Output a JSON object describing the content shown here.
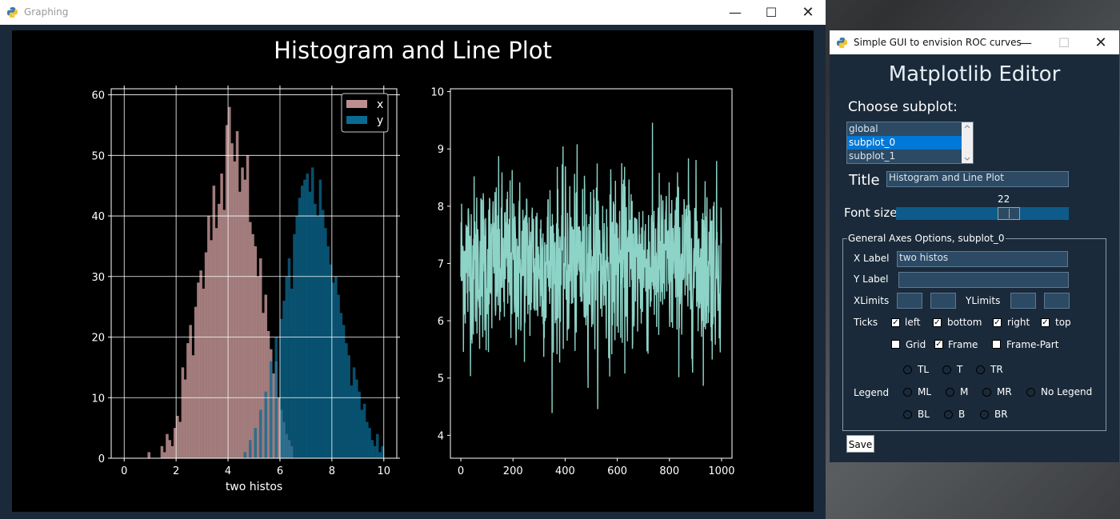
{
  "win1": {
    "title": "Graphing",
    "suptitle": "Histogram and Line Plot"
  },
  "win2": {
    "title": "Simple GUI to envision ROC curves",
    "heading": "Matplotlib Editor",
    "choose_subplot_label": "Choose subplot:",
    "subplots": [
      "global",
      "subplot_0",
      "subplot_1"
    ],
    "selected_subplot": "subplot_0",
    "title_label": "Title",
    "title_value": "Histogram and Line Plot",
    "font_size_label": "Font size",
    "font_size_value": "22",
    "axes_frame_title": "General Axes Options, subplot_0",
    "xlabel_label": "X Label",
    "xlabel_value": "two histos",
    "ylabel_label": "Y Label",
    "ylabel_value": "",
    "xlimits_label": "XLimits",
    "ylimits_label": "YLimits",
    "ticks_label": "Ticks",
    "ticks": [
      {
        "label": "left",
        "checked": true
      },
      {
        "label": "bottom",
        "checked": true
      },
      {
        "label": "right",
        "checked": true
      },
      {
        "label": "top",
        "checked": true
      }
    ],
    "options": [
      {
        "label": "Grid",
        "checked": false
      },
      {
        "label": "Frame",
        "checked": true
      },
      {
        "label": "Frame-Part",
        "checked": false
      }
    ],
    "legend_label": "Legend",
    "legend_positions": [
      "TL",
      "T",
      "TR",
      "ML",
      "M",
      "MR",
      "No Legend",
      "BL",
      "B",
      "BR"
    ],
    "save_label": "Save"
  },
  "chart_data": [
    {
      "type": "bar",
      "title": "",
      "xlabel": "two histos",
      "ylabel": "",
      "xlim": [
        -0.5,
        10.5
      ],
      "ylim": [
        0,
        61
      ],
      "xticks": [
        "0",
        "2",
        "4",
        "6",
        "8",
        "10"
      ],
      "yticks": [
        "0",
        "10",
        "20",
        "30",
        "40",
        "50",
        "60"
      ],
      "grid": true,
      "legend": "top-right",
      "bin_width": 0.1,
      "series": [
        {
          "name": "x",
          "color": "#bc8f8f",
          "bin_starts": [
            0.9,
            1.0,
            1.1,
            1.2,
            1.3,
            1.4,
            1.5,
            1.6,
            1.7,
            1.8,
            1.9,
            2.0,
            2.1,
            2.2,
            2.3,
            2.4,
            2.5,
            2.6,
            2.7,
            2.8,
            2.9,
            3.0,
            3.1,
            3.2,
            3.3,
            3.4,
            3.5,
            3.6,
            3.7,
            3.8,
            3.9,
            4.0,
            4.1,
            4.2,
            4.3,
            4.4,
            4.5,
            4.6,
            4.7,
            4.8,
            4.9,
            5.0,
            5.1,
            5.2,
            5.3,
            5.4,
            5.5,
            5.6,
            5.7,
            5.8,
            5.9,
            6.0,
            6.1,
            6.2,
            6.3,
            6.4
          ],
          "values": [
            1,
            0,
            0,
            0,
            0,
            2,
            1,
            4,
            3,
            2,
            5,
            7,
            6,
            15,
            13,
            19,
            22,
            17,
            25,
            29,
            31,
            28,
            34,
            40,
            36,
            45,
            38,
            42,
            47,
            41,
            55,
            58,
            52,
            49,
            54,
            44,
            48,
            46,
            50,
            39,
            37,
            35,
            30,
            33,
            24,
            27,
            21,
            18,
            14,
            16,
            10,
            8,
            6,
            4,
            3,
            2
          ]
        },
        {
          "name": "y",
          "color": "#0b6a92",
          "bin_starts": [
            4.6,
            4.8,
            5.0,
            5.2,
            5.4,
            5.6,
            5.8,
            6.0,
            6.1,
            6.2,
            6.3,
            6.4,
            6.5,
            6.6,
            6.7,
            6.8,
            6.9,
            7.0,
            7.1,
            7.2,
            7.3,
            7.4,
            7.5,
            7.6,
            7.7,
            7.8,
            7.9,
            8.0,
            8.1,
            8.2,
            8.3,
            8.4,
            8.5,
            8.6,
            8.7,
            8.8,
            8.9,
            9.0,
            9.1,
            9.2,
            9.3,
            9.4,
            9.5,
            9.6,
            9.7,
            9.8,
            9.9
          ],
          "values": [
            1,
            3,
            5,
            8,
            11,
            16,
            20,
            23,
            26,
            30,
            33,
            28,
            37,
            40,
            43,
            45,
            46,
            47,
            44,
            48,
            42,
            40,
            46,
            41,
            38,
            35,
            32,
            29,
            30,
            27,
            24,
            22,
            19,
            17,
            12,
            15,
            13,
            11,
            8,
            9,
            6,
            5,
            3,
            2,
            4,
            1,
            2
          ]
        }
      ]
    },
    {
      "type": "line",
      "title": "",
      "xlabel": "",
      "ylabel": "",
      "xlim": [
        -40,
        1040
      ],
      "ylim": [
        3.6,
        10.05
      ],
      "xticks": [
        "0",
        "200",
        "400",
        "600",
        "800",
        "1000"
      ],
      "yticks": [
        "4",
        "5",
        "6",
        "7",
        "8",
        "9",
        "10"
      ],
      "grid": false,
      "color": "#8dd3c7",
      "series": [
        {
          "generator": "noise around 7 with std 0.75, n=1000",
          "approx_min": 3.9,
          "approx_max": 9.7,
          "mean": 7.0,
          "n": 1000
        }
      ]
    }
  ]
}
